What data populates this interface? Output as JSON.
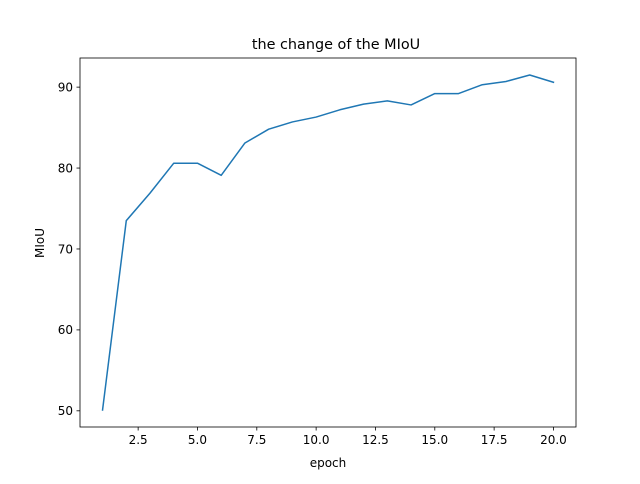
{
  "chart_data": {
    "type": "line",
    "title": "the change of the MIoU",
    "xlabel": "epoch",
    "ylabel": "MIoU",
    "xlim": [
      0.05,
      20.95
    ],
    "ylim": [
      48.0,
      93.6
    ],
    "x_ticks": [
      2.5,
      5.0,
      7.5,
      10.0,
      12.5,
      15.0,
      17.5,
      20.0
    ],
    "x_tick_labels": [
      "2.5",
      "5.0",
      "7.5",
      "10.0",
      "12.5",
      "15.0",
      "17.5",
      "20.0"
    ],
    "y_ticks": [
      50,
      60,
      70,
      80,
      90
    ],
    "y_tick_labels": [
      "50",
      "60",
      "70",
      "80",
      "90"
    ],
    "grid": false,
    "legend": "none",
    "series": [
      {
        "color": "#1f77b4",
        "x": [
          1,
          2,
          3,
          4,
          5,
          6,
          7,
          8,
          9,
          10,
          11,
          12,
          13,
          14,
          15,
          16,
          17,
          18,
          19,
          20
        ],
        "y": [
          50.1,
          73.5,
          76.9,
          80.6,
          80.6,
          79.1,
          83.1,
          84.8,
          85.7,
          86.3,
          87.2,
          87.9,
          88.3,
          87.8,
          89.2,
          89.2,
          90.3,
          90.7,
          91.5,
          90.6
        ]
      }
    ]
  }
}
